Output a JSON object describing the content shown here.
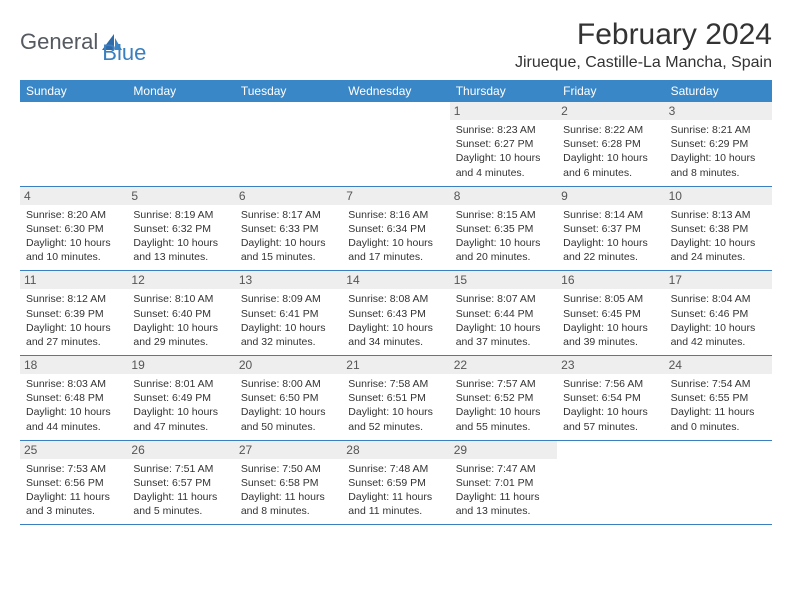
{
  "header": {
    "logo_text_1": "General",
    "logo_text_2": "Blue",
    "month_title": "February 2024",
    "location": "Jirueque, Castille-La Mancha, Spain"
  },
  "theme": {
    "header_bg": "#3a87c7",
    "border_color": "#3a7fbf",
    "day_number_bg": "#eeeeee",
    "text_color": "#333333"
  },
  "day_headers": [
    "Sunday",
    "Monday",
    "Tuesday",
    "Wednesday",
    "Thursday",
    "Friday",
    "Saturday"
  ],
  "weeks": [
    [
      null,
      null,
      null,
      null,
      {
        "n": "1",
        "sunrise": "Sunrise: 8:23 AM",
        "sunset": "Sunset: 6:27 PM",
        "d1": "Daylight: 10 hours",
        "d2": "and 4 minutes."
      },
      {
        "n": "2",
        "sunrise": "Sunrise: 8:22 AM",
        "sunset": "Sunset: 6:28 PM",
        "d1": "Daylight: 10 hours",
        "d2": "and 6 minutes."
      },
      {
        "n": "3",
        "sunrise": "Sunrise: 8:21 AM",
        "sunset": "Sunset: 6:29 PM",
        "d1": "Daylight: 10 hours",
        "d2": "and 8 minutes."
      }
    ],
    [
      {
        "n": "4",
        "sunrise": "Sunrise: 8:20 AM",
        "sunset": "Sunset: 6:30 PM",
        "d1": "Daylight: 10 hours",
        "d2": "and 10 minutes."
      },
      {
        "n": "5",
        "sunrise": "Sunrise: 8:19 AM",
        "sunset": "Sunset: 6:32 PM",
        "d1": "Daylight: 10 hours",
        "d2": "and 13 minutes."
      },
      {
        "n": "6",
        "sunrise": "Sunrise: 8:17 AM",
        "sunset": "Sunset: 6:33 PM",
        "d1": "Daylight: 10 hours",
        "d2": "and 15 minutes."
      },
      {
        "n": "7",
        "sunrise": "Sunrise: 8:16 AM",
        "sunset": "Sunset: 6:34 PM",
        "d1": "Daylight: 10 hours",
        "d2": "and 17 minutes."
      },
      {
        "n": "8",
        "sunrise": "Sunrise: 8:15 AM",
        "sunset": "Sunset: 6:35 PM",
        "d1": "Daylight: 10 hours",
        "d2": "and 20 minutes."
      },
      {
        "n": "9",
        "sunrise": "Sunrise: 8:14 AM",
        "sunset": "Sunset: 6:37 PM",
        "d1": "Daylight: 10 hours",
        "d2": "and 22 minutes."
      },
      {
        "n": "10",
        "sunrise": "Sunrise: 8:13 AM",
        "sunset": "Sunset: 6:38 PM",
        "d1": "Daylight: 10 hours",
        "d2": "and 24 minutes."
      }
    ],
    [
      {
        "n": "11",
        "sunrise": "Sunrise: 8:12 AM",
        "sunset": "Sunset: 6:39 PM",
        "d1": "Daylight: 10 hours",
        "d2": "and 27 minutes."
      },
      {
        "n": "12",
        "sunrise": "Sunrise: 8:10 AM",
        "sunset": "Sunset: 6:40 PM",
        "d1": "Daylight: 10 hours",
        "d2": "and 29 minutes."
      },
      {
        "n": "13",
        "sunrise": "Sunrise: 8:09 AM",
        "sunset": "Sunset: 6:41 PM",
        "d1": "Daylight: 10 hours",
        "d2": "and 32 minutes."
      },
      {
        "n": "14",
        "sunrise": "Sunrise: 8:08 AM",
        "sunset": "Sunset: 6:43 PM",
        "d1": "Daylight: 10 hours",
        "d2": "and 34 minutes."
      },
      {
        "n": "15",
        "sunrise": "Sunrise: 8:07 AM",
        "sunset": "Sunset: 6:44 PM",
        "d1": "Daylight: 10 hours",
        "d2": "and 37 minutes."
      },
      {
        "n": "16",
        "sunrise": "Sunrise: 8:05 AM",
        "sunset": "Sunset: 6:45 PM",
        "d1": "Daylight: 10 hours",
        "d2": "and 39 minutes."
      },
      {
        "n": "17",
        "sunrise": "Sunrise: 8:04 AM",
        "sunset": "Sunset: 6:46 PM",
        "d1": "Daylight: 10 hours",
        "d2": "and 42 minutes."
      }
    ],
    [
      {
        "n": "18",
        "sunrise": "Sunrise: 8:03 AM",
        "sunset": "Sunset: 6:48 PM",
        "d1": "Daylight: 10 hours",
        "d2": "and 44 minutes."
      },
      {
        "n": "19",
        "sunrise": "Sunrise: 8:01 AM",
        "sunset": "Sunset: 6:49 PM",
        "d1": "Daylight: 10 hours",
        "d2": "and 47 minutes."
      },
      {
        "n": "20",
        "sunrise": "Sunrise: 8:00 AM",
        "sunset": "Sunset: 6:50 PM",
        "d1": "Daylight: 10 hours",
        "d2": "and 50 minutes."
      },
      {
        "n": "21",
        "sunrise": "Sunrise: 7:58 AM",
        "sunset": "Sunset: 6:51 PM",
        "d1": "Daylight: 10 hours",
        "d2": "and 52 minutes."
      },
      {
        "n": "22",
        "sunrise": "Sunrise: 7:57 AM",
        "sunset": "Sunset: 6:52 PM",
        "d1": "Daylight: 10 hours",
        "d2": "and 55 minutes."
      },
      {
        "n": "23",
        "sunrise": "Sunrise: 7:56 AM",
        "sunset": "Sunset: 6:54 PM",
        "d1": "Daylight: 10 hours",
        "d2": "and 57 minutes."
      },
      {
        "n": "24",
        "sunrise": "Sunrise: 7:54 AM",
        "sunset": "Sunset: 6:55 PM",
        "d1": "Daylight: 11 hours",
        "d2": "and 0 minutes."
      }
    ],
    [
      {
        "n": "25",
        "sunrise": "Sunrise: 7:53 AM",
        "sunset": "Sunset: 6:56 PM",
        "d1": "Daylight: 11 hours",
        "d2": "and 3 minutes."
      },
      {
        "n": "26",
        "sunrise": "Sunrise: 7:51 AM",
        "sunset": "Sunset: 6:57 PM",
        "d1": "Daylight: 11 hours",
        "d2": "and 5 minutes."
      },
      {
        "n": "27",
        "sunrise": "Sunrise: 7:50 AM",
        "sunset": "Sunset: 6:58 PM",
        "d1": "Daylight: 11 hours",
        "d2": "and 8 minutes."
      },
      {
        "n": "28",
        "sunrise": "Sunrise: 7:48 AM",
        "sunset": "Sunset: 6:59 PM",
        "d1": "Daylight: 11 hours",
        "d2": "and 11 minutes."
      },
      {
        "n": "29",
        "sunrise": "Sunrise: 7:47 AM",
        "sunset": "Sunset: 7:01 PM",
        "d1": "Daylight: 11 hours",
        "d2": "and 13 minutes."
      },
      null,
      null
    ]
  ]
}
